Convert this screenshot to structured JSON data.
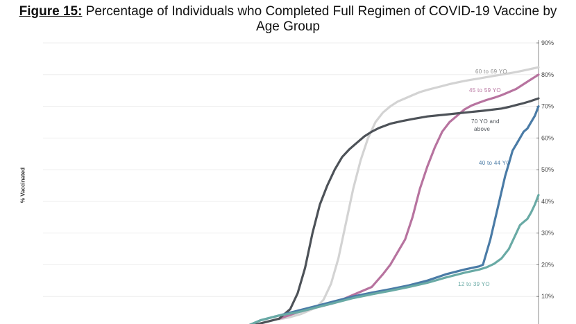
{
  "title": {
    "prefix": "Figure 15:",
    "text": "Percentage of Individuals who Completed Full Regimen of COVID-19 Vaccine by",
    "text_line2": "Age Group"
  },
  "chart_data": {
    "type": "line",
    "ylabel": "% Vaccinated",
    "ylim": [
      0,
      90
    ],
    "yticks": [
      10,
      20,
      30,
      40,
      50,
      60,
      70,
      80,
      90
    ],
    "ytick_labels": [
      "10%",
      "20%",
      "30%",
      "40%",
      "50%",
      "60%",
      "70%",
      "80%",
      "90%"
    ],
    "x_index_range": [
      0,
      100
    ],
    "grid": true,
    "series": [
      {
        "name": "60 to 69 YO",
        "color": "#d3d3d3",
        "x": [
          30,
          33,
          36,
          38,
          40,
          42,
          44,
          46,
          48,
          50,
          52,
          54,
          56,
          58,
          60,
          62,
          64,
          66,
          68,
          70,
          72,
          74,
          76,
          78,
          80,
          82,
          84,
          86,
          88,
          90,
          92,
          94,
          96,
          98,
          100
        ],
        "y": [
          2.8,
          3.5,
          4.5,
          5.5,
          6.5,
          9,
          14,
          22,
          33,
          44,
          53,
          60,
          65,
          68,
          70,
          71.5,
          72.5,
          73.5,
          74.5,
          75.2,
          75.8,
          76.4,
          77,
          77.5,
          78,
          78.4,
          78.8,
          79.2,
          79.6,
          80,
          80.4,
          80.8,
          81.3,
          81.8,
          82.3
        ]
      },
      {
        "name": "45 to 59 YO",
        "color": "#b7739f",
        "x": [
          30,
          35,
          40,
          45,
          50,
          55,
          58,
          60,
          62,
          64,
          66,
          68,
          70,
          72,
          74,
          76,
          78,
          80,
          82,
          84,
          86,
          88,
          90,
          92,
          94,
          96,
          98,
          100
        ],
        "y": [
          3,
          5,
          6.5,
          8,
          10.5,
          13,
          17,
          20,
          24,
          28,
          35,
          44,
          51,
          57,
          62,
          65,
          67,
          69,
          70.3,
          71.2,
          72,
          72.7,
          73.5,
          74.5,
          75.5,
          77,
          78.5,
          80
        ]
      },
      {
        "name": "70 YO and above",
        "color": "#4d5258",
        "x": [
          0,
          20,
          25,
          30,
          33,
          35,
          37,
          39,
          41,
          43,
          45,
          47,
          49,
          51,
          53,
          55,
          57,
          60,
          63,
          66,
          70,
          75,
          80,
          85,
          90,
          92,
          94,
          96,
          98,
          100
        ],
        "y": [
          0,
          0,
          1.5,
          3,
          6,
          11,
          19,
          30,
          39,
          45,
          50,
          54,
          56.5,
          58.5,
          60.5,
          62,
          63.2,
          64.5,
          65.3,
          66,
          66.8,
          67.4,
          68,
          68.6,
          69.3,
          69.8,
          70.4,
          71,
          71.7,
          72.5
        ]
      },
      {
        "name": "40 to 44 YO",
        "color": "#4a7ba6",
        "x": [
          0,
          20,
          25,
          30,
          35,
          40,
          45,
          50,
          55,
          60,
          65,
          70,
          75,
          80,
          84,
          85,
          87,
          89,
          91,
          92,
          93,
          94,
          95,
          96,
          97,
          98,
          99,
          100
        ],
        "y": [
          0,
          0,
          2.5,
          4,
          5.5,
          7,
          8.5,
          10,
          11.2,
          12.3,
          13.5,
          15,
          17,
          18.5,
          19.5,
          20,
          28,
          38,
          48,
          52,
          56,
          58,
          60,
          62,
          63,
          65,
          67,
          70
        ]
      },
      {
        "name": "12 to 39 YO",
        "color": "#69aaa5",
        "x": [
          0,
          20,
          25,
          30,
          35,
          40,
          45,
          50,
          55,
          60,
          65,
          70,
          75,
          80,
          84,
          86,
          88,
          90,
          92,
          94,
          95,
          96,
          97,
          98,
          99,
          100
        ],
        "y": [
          0,
          0,
          2.5,
          4,
          5,
          6.5,
          8,
          9.5,
          10.7,
          11.8,
          13,
          14.3,
          16,
          17.5,
          18.5,
          19.2,
          20.3,
          22,
          25,
          30,
          32.5,
          33.5,
          34.5,
          36.5,
          39,
          42
        ]
      }
    ],
    "annotations": [
      {
        "text": "60 to 69 YO",
        "color": "#8a8a8a"
      },
      {
        "text": "45 to 59 YO",
        "color": "#b7739f"
      },
      {
        "text": "70 YO and",
        "color": "#4d5258"
      },
      {
        "text": "above",
        "color": "#4d5258"
      },
      {
        "text": "40 to 44 YO",
        "color": "#4a7ba6"
      },
      {
        "text": "12 to 39 YO",
        "color": "#69aaa5"
      }
    ]
  }
}
